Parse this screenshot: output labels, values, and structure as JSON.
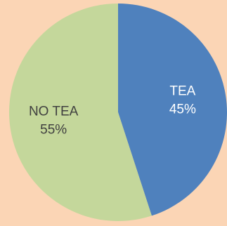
{
  "chart_data": {
    "type": "pie",
    "title": "",
    "slices": [
      {
        "label": "TEA",
        "value": 45,
        "display": "45%",
        "color": "#4f81bd",
        "label_color": "#ffffff"
      },
      {
        "label": "NO TEA",
        "value": 55,
        "display": "55%",
        "color": "#c4d79b",
        "label_color": "#404040"
      }
    ],
    "start": "12 o'clock",
    "direction": "clockwise",
    "legend": "none",
    "background_color": "#fbd5b5"
  }
}
